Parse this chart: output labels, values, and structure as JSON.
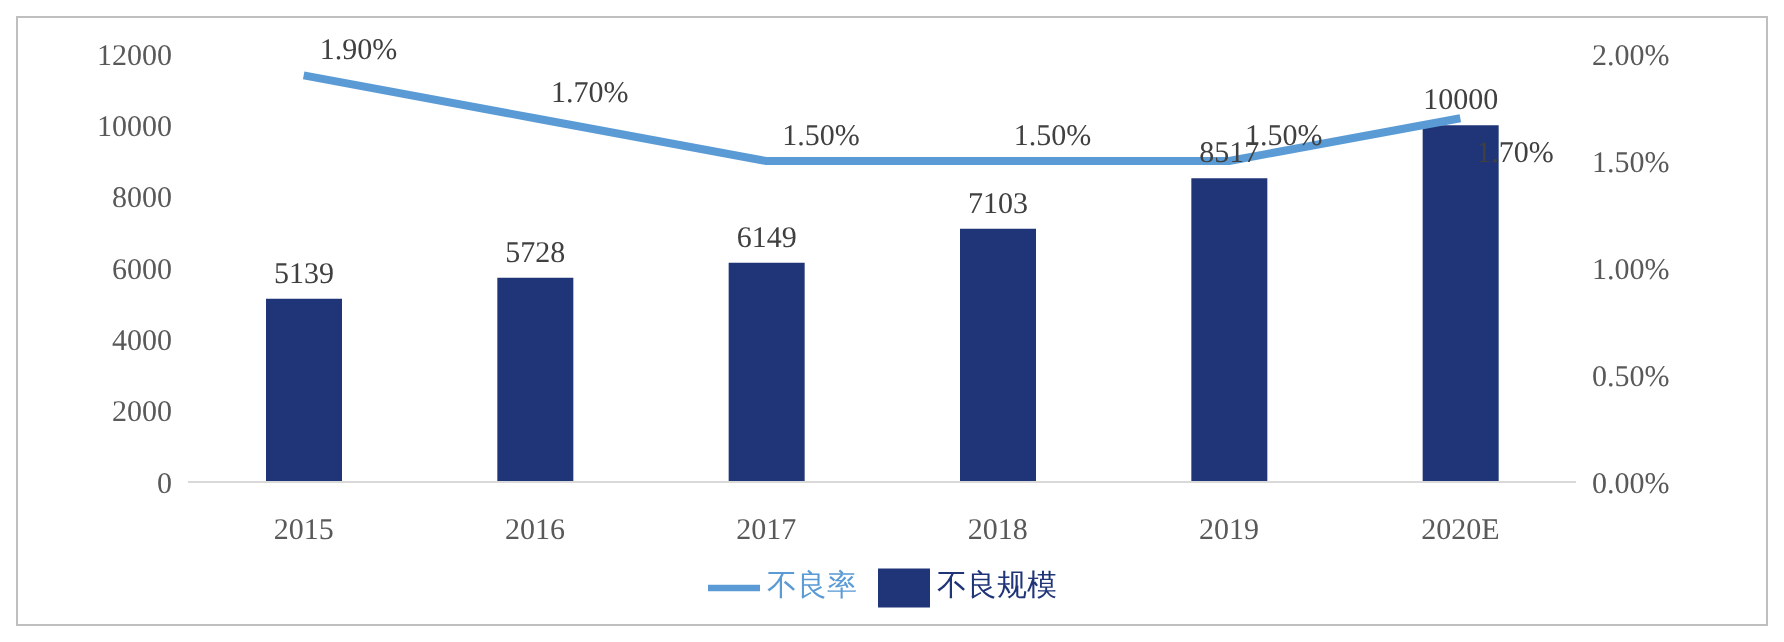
{
  "chart_data": {
    "type": "bar",
    "categories": [
      "2015",
      "2016",
      "2017",
      "2018",
      "2019",
      "2020E"
    ],
    "series": [
      {
        "name": "不良规模",
        "color": "#203578",
        "values": [
          5139,
          5728,
          6149,
          7103,
          8517,
          10000
        ],
        "value_labels": [
          "5139",
          "5728",
          "6149",
          "7103",
          "8517",
          "10000"
        ]
      },
      {
        "name": "不良率",
        "type": "line",
        "axis": "y2",
        "color": "#5b9bd5",
        "values": [
          1.9,
          1.7,
          1.5,
          1.5,
          1.5,
          1.7
        ],
        "value_labels": [
          "1.90%",
          "1.70%",
          "1.50%",
          "1.50%",
          "1.50%",
          "1.70%"
        ]
      }
    ],
    "ylim": [
      0,
      12000
    ],
    "yticks": [
      0,
      2000,
      4000,
      6000,
      8000,
      10000,
      12000
    ],
    "y2lim": [
      0,
      2
    ],
    "y2ticks": [
      {
        "value": 0,
        "label": "0.00%"
      },
      {
        "value": 0.5,
        "label": "0.50%"
      },
      {
        "value": 1,
        "label": "1.00%"
      },
      {
        "value": 1.5,
        "label": "1.50%"
      },
      {
        "value": 2,
        "label": "2.00%"
      }
    ],
    "legend": "bottom",
    "grid": false,
    "marker": "none"
  }
}
